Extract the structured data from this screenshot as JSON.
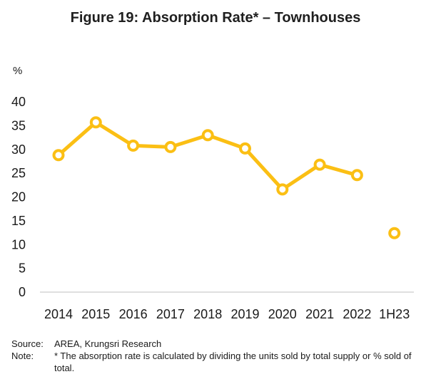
{
  "chart_data": {
    "type": "line",
    "title": "Figure 19: Absorption Rate* – Townhouses",
    "ylabel": "%",
    "xlabel": "",
    "categories": [
      "2014",
      "2015",
      "2016",
      "2017",
      "2018",
      "2019",
      "2020",
      "2021",
      "2022",
      "1H23"
    ],
    "series": [
      {
        "values": [
          28.8,
          35.7,
          30.8,
          30.5,
          33.0,
          30.2,
          21.6,
          26.8,
          24.6,
          null
        ]
      },
      {
        "values": [
          null,
          null,
          null,
          null,
          null,
          null,
          null,
          null,
          null,
          12.4
        ]
      }
    ],
    "yticks": [
      "0",
      "5",
      "10",
      "15",
      "20",
      "25",
      "30",
      "35",
      "40"
    ],
    "ylim": [
      0,
      40
    ],
    "grid": false,
    "legend": "none",
    "color": "#FBBF14"
  },
  "notes": {
    "source_label": "Source:",
    "source_text": "AREA, Krungsri Research",
    "note_label": "Note:",
    "note_text": "* The absorption rate is calculated by dividing the units sold by total supply or % sold of total."
  }
}
